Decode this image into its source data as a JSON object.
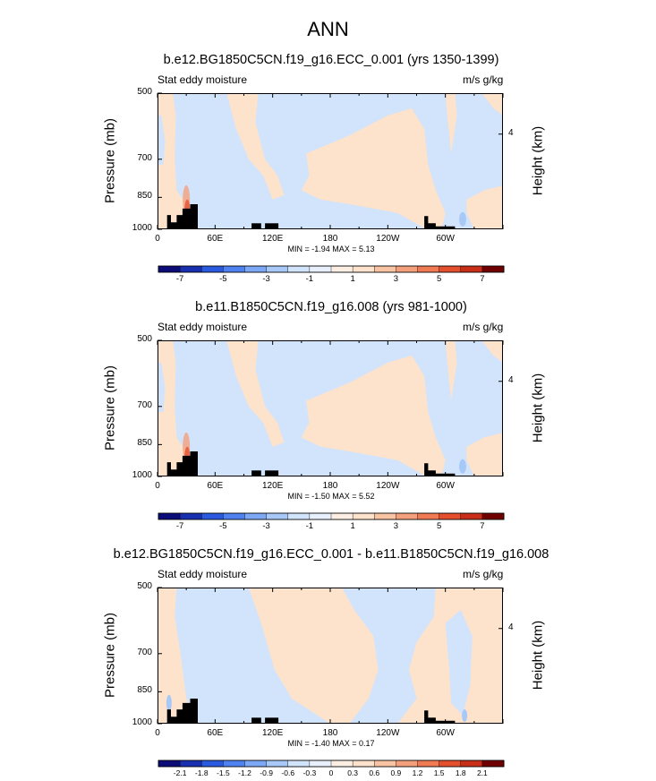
{
  "figure": {
    "title": "ANN",
    "colors": {
      "frame": "#000000",
      "terrain": "#000000",
      "palette": [
        "#0c0c78",
        "#1830b0",
        "#2a5ae0",
        "#4f82f0",
        "#7da8f5",
        "#a8c8f8",
        "#d2e4fb",
        "#fde2cc",
        "#f9c4a4",
        "#f5a07c",
        "#ef7a54",
        "#e4502e",
        "#c82e18",
        "#9c1408",
        "#700000"
      ]
    }
  },
  "chart_data": [
    {
      "type": "heatmap",
      "title": "b.e12.BG1850C5CN.f19_g16.ECC_0.001 (yrs 1350-1399)",
      "left_label": "Stat eddy moisture",
      "right_label": "m/s g/kg",
      "ylabel": "Pressure (mb)",
      "ylabel_right": "Height (km)",
      "yticks": [
        500,
        700,
        850,
        1000
      ],
      "yticks_right": [
        "4"
      ],
      "xticks": [
        "0",
        "60E",
        "120E",
        "180",
        "120W",
        "60W"
      ],
      "xlim": [
        0,
        360
      ],
      "ylim": [
        1000,
        500
      ],
      "min": "-1.94",
      "max": "5.13",
      "minmax_text": "MIN =  -1.94  MAX =  5.13",
      "colorbar_ticks": [
        "-7",
        "-5",
        "-3",
        "-1",
        "1",
        "3",
        "5",
        "7"
      ]
    },
    {
      "type": "heatmap",
      "title": "b.e11.B1850C5CN.f19_g16.008 (yrs 981-1000)",
      "left_label": "Stat eddy moisture",
      "right_label": "m/s g/kg",
      "ylabel": "Pressure (mb)",
      "ylabel_right": "Height (km)",
      "yticks": [
        500,
        700,
        850,
        1000
      ],
      "yticks_right": [
        "4"
      ],
      "xticks": [
        "0",
        "60E",
        "120E",
        "180",
        "120W",
        "60W"
      ],
      "xlim": [
        0,
        360
      ],
      "ylim": [
        1000,
        500
      ],
      "min": "-1.50",
      "max": "5.52",
      "minmax_text": "MIN =  -1.50  MAX =  5.52",
      "colorbar_ticks": [
        "-7",
        "-5",
        "-3",
        "-1",
        "1",
        "3",
        "5",
        "7"
      ]
    },
    {
      "type": "heatmap",
      "title": "b.e12.BG1850C5CN.f19_g16.ECC_0.001 - b.e11.B1850C5CN.f19_g16.008",
      "left_label": "Stat eddy moisture",
      "right_label": "m/s g/kg",
      "ylabel": "Pressure (mb)",
      "ylabel_right": "Height (km)",
      "yticks": [
        500,
        700,
        850,
        1000
      ],
      "yticks_right": [
        "4"
      ],
      "xticks": [
        "0",
        "60E",
        "120E",
        "180",
        "120W",
        "60W"
      ],
      "xlim": [
        0,
        360
      ],
      "ylim": [
        1000,
        500
      ],
      "min": "-1.40",
      "max": "0.17",
      "minmax_text": "MIN =  -1.40  MAX =  0.17",
      "colorbar_ticks": [
        "-2.1",
        "-1.8",
        "-1.5",
        "-1.2",
        "-0.9",
        "-0.6",
        "-0.3",
        "0",
        "0.3",
        "0.6",
        "0.9",
        "1.2",
        "1.5",
        "1.8",
        "2.1"
      ]
    }
  ]
}
